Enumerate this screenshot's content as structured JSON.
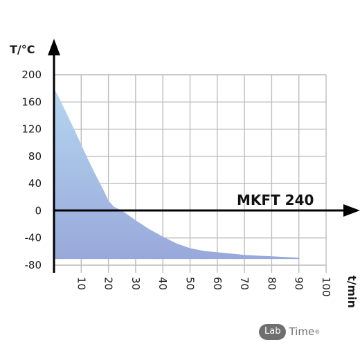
{
  "chart_data": {
    "type": "area",
    "title": "",
    "xlabel": "t/min",
    "ylabel": "T/°C",
    "xlim": [
      0,
      100
    ],
    "ylim": [
      -80,
      200
    ],
    "x_ticks": [
      10,
      20,
      30,
      40,
      50,
      60,
      70,
      80,
      90,
      100
    ],
    "y_ticks": [
      200,
      160,
      120,
      80,
      40,
      0,
      -40,
      -80
    ],
    "grid": true,
    "series": [
      {
        "name": "MKFT 240",
        "x": [
          0,
          2,
          5,
          8,
          10,
          12,
          15,
          18,
          20,
          22,
          25,
          30,
          35,
          40,
          45,
          50,
          55,
          60,
          65,
          70,
          75,
          80,
          85,
          90
        ],
        "y": [
          180,
          165,
          140,
          115,
          97,
          80,
          55,
          32,
          15,
          6,
          0,
          -14,
          -27,
          -38,
          -48,
          -55,
          -59,
          -61,
          -63,
          -65,
          -66,
          -67,
          -68,
          -69
        ]
      }
    ],
    "area_bottom": -71,
    "colors": {
      "fill_top": "#b5d6f0",
      "fill_bottom": "#98a8da",
      "grid": "#bcbcbc",
      "axis": "#000000"
    }
  },
  "logo": {
    "left": "Lab",
    "right": "Time",
    "mark": "®"
  }
}
